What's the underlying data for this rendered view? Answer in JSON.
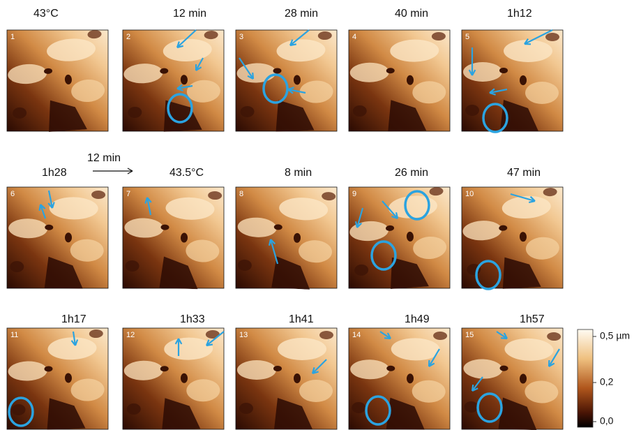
{
  "panels": [
    {
      "number": "1",
      "label": "43°C"
    },
    {
      "number": "2",
      "label": "12 min"
    },
    {
      "number": "3",
      "label": "28 min"
    },
    {
      "number": "4",
      "label": "40 min"
    },
    {
      "number": "5",
      "label": "1h12"
    },
    {
      "number": "6",
      "label": "1h28"
    },
    {
      "number": "7",
      "label": "43.5°C"
    },
    {
      "number": "8",
      "label": "8 min"
    },
    {
      "number": "9",
      "label": "26 min"
    },
    {
      "number": "10",
      "label": "47 min"
    },
    {
      "number": "11",
      "label": "1h17"
    },
    {
      "number": "12",
      "label": "1h33"
    },
    {
      "number": "13",
      "label": "1h41"
    },
    {
      "number": "14",
      "label": "1h49"
    },
    {
      "number": "15",
      "label": "1h57"
    }
  ],
  "interval_note": "12 min",
  "colorbar": {
    "top": "0,5 µm",
    "middle": "0,2",
    "bottom": "0,0"
  }
}
